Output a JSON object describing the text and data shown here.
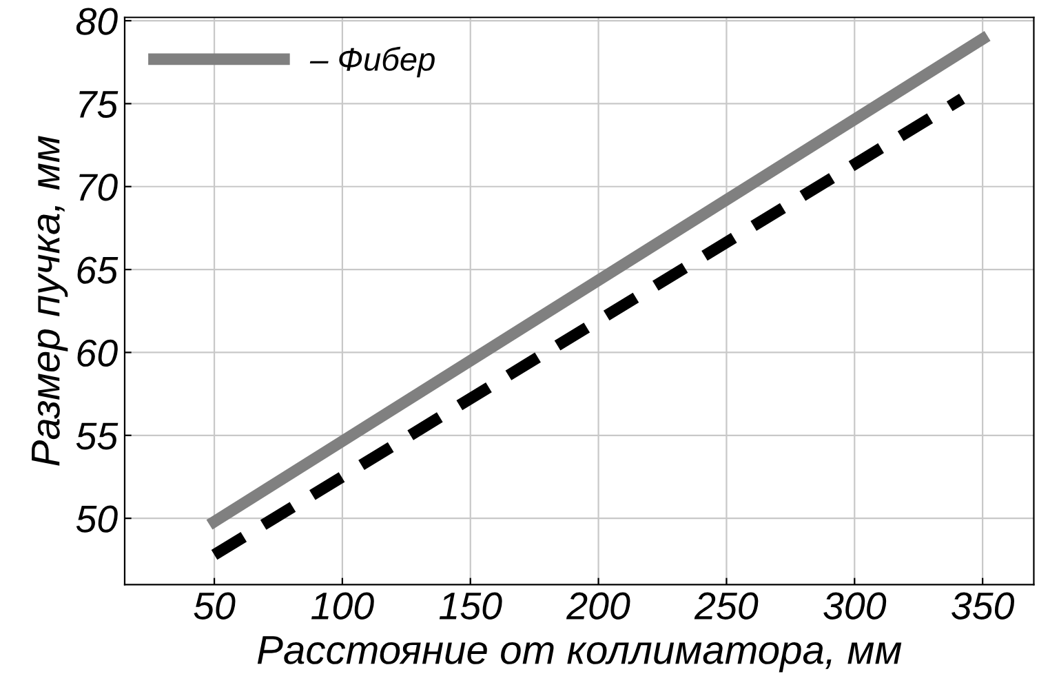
{
  "chart_data": {
    "type": "line",
    "xlabel": "Расстояние от коллиматора, мм",
    "ylabel": "Размер пучка, мм",
    "series": [
      {
        "name": "– Фибер",
        "color": "#808080",
        "x": [
          50,
          350
        ],
        "values": [
          49.8,
          78.9
        ],
        "line_style": "solid"
      },
      {
        "color": "#000000",
        "x": [
          50,
          342
        ],
        "values": [
          47.8,
          75.3
        ],
        "line_style": "dashed"
      }
    ],
    "xlim": [
      15,
      370
    ],
    "ylim": [
      46,
      80.2
    ],
    "xticks": [
      50,
      100,
      150,
      200,
      250,
      300,
      350
    ],
    "yticks": [
      50,
      55,
      60,
      65,
      70,
      75,
      80
    ],
    "grid": true,
    "legend": "top left",
    "marker": "none"
  }
}
